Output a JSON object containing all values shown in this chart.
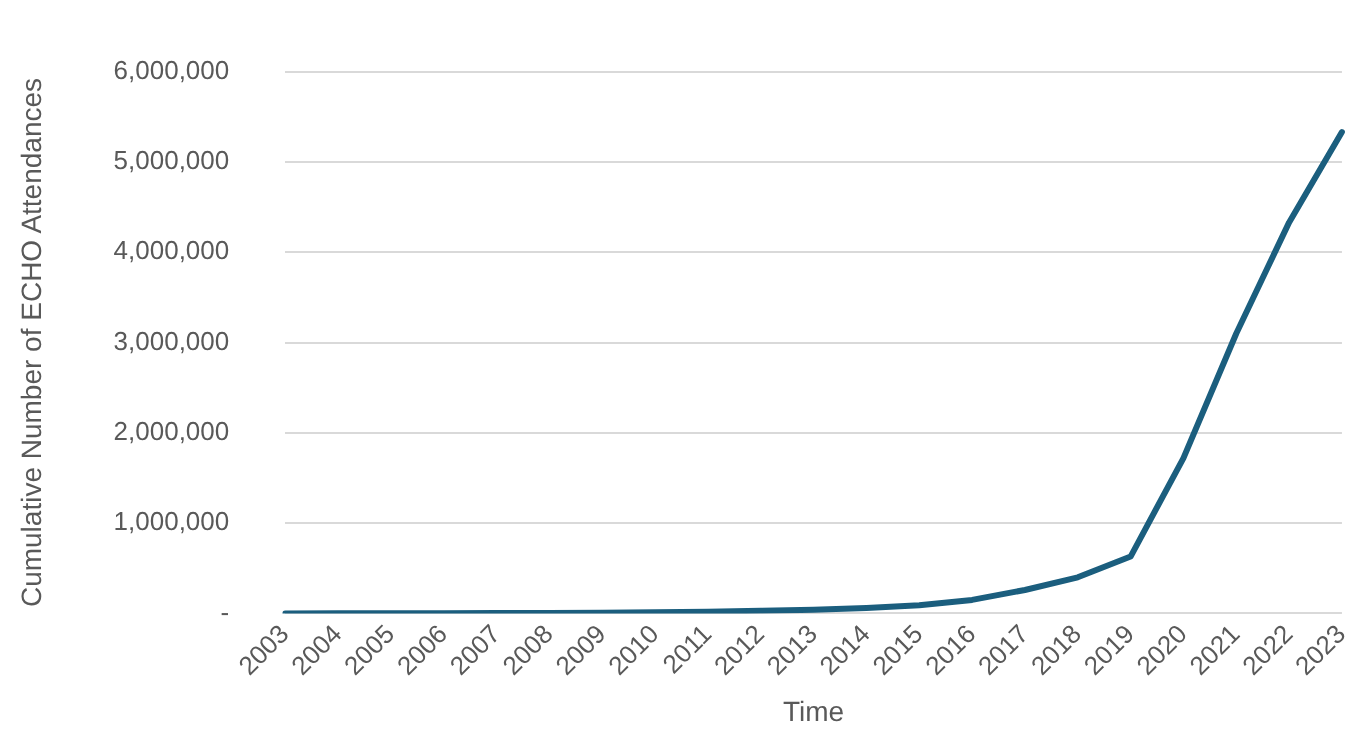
{
  "chart_data": {
    "type": "line",
    "xlabel": "Time",
    "ylabel": "Cumulative Number of ECHO Attendances",
    "categories": [
      "2003",
      "2004",
      "2005",
      "2006",
      "2007",
      "2008",
      "2009",
      "2010",
      "2011",
      "2012",
      "2013",
      "2014",
      "2015",
      "2016",
      "2017",
      "2018",
      "2019",
      "2020",
      "2021",
      "2022",
      "2023"
    ],
    "series": [
      {
        "color": "#1b5e7e",
        "values": [
          0,
          1000,
          2000,
          3000,
          4000,
          5000,
          7000,
          12000,
          20000,
          30000,
          42000,
          60000,
          90000,
          150000,
          260000,
          400000,
          630000,
          1720000,
          3100000,
          4330000,
          5330000
        ]
      }
    ],
    "ylim": [
      0,
      6000000
    ],
    "yticks": [
      {
        "value": 0,
        "label": "-"
      },
      {
        "value": 1000000,
        "label": "1,000,000"
      },
      {
        "value": 2000000,
        "label": "2,000,000"
      },
      {
        "value": 3000000,
        "label": "3,000,000"
      },
      {
        "value": 4000000,
        "label": "4,000,000"
      },
      {
        "value": 5000000,
        "label": "5,000,000"
      },
      {
        "value": 6000000,
        "label": "6,000,000"
      }
    ],
    "grid": "y",
    "legend": false,
    "marker": "none",
    "line_style": "solid"
  }
}
